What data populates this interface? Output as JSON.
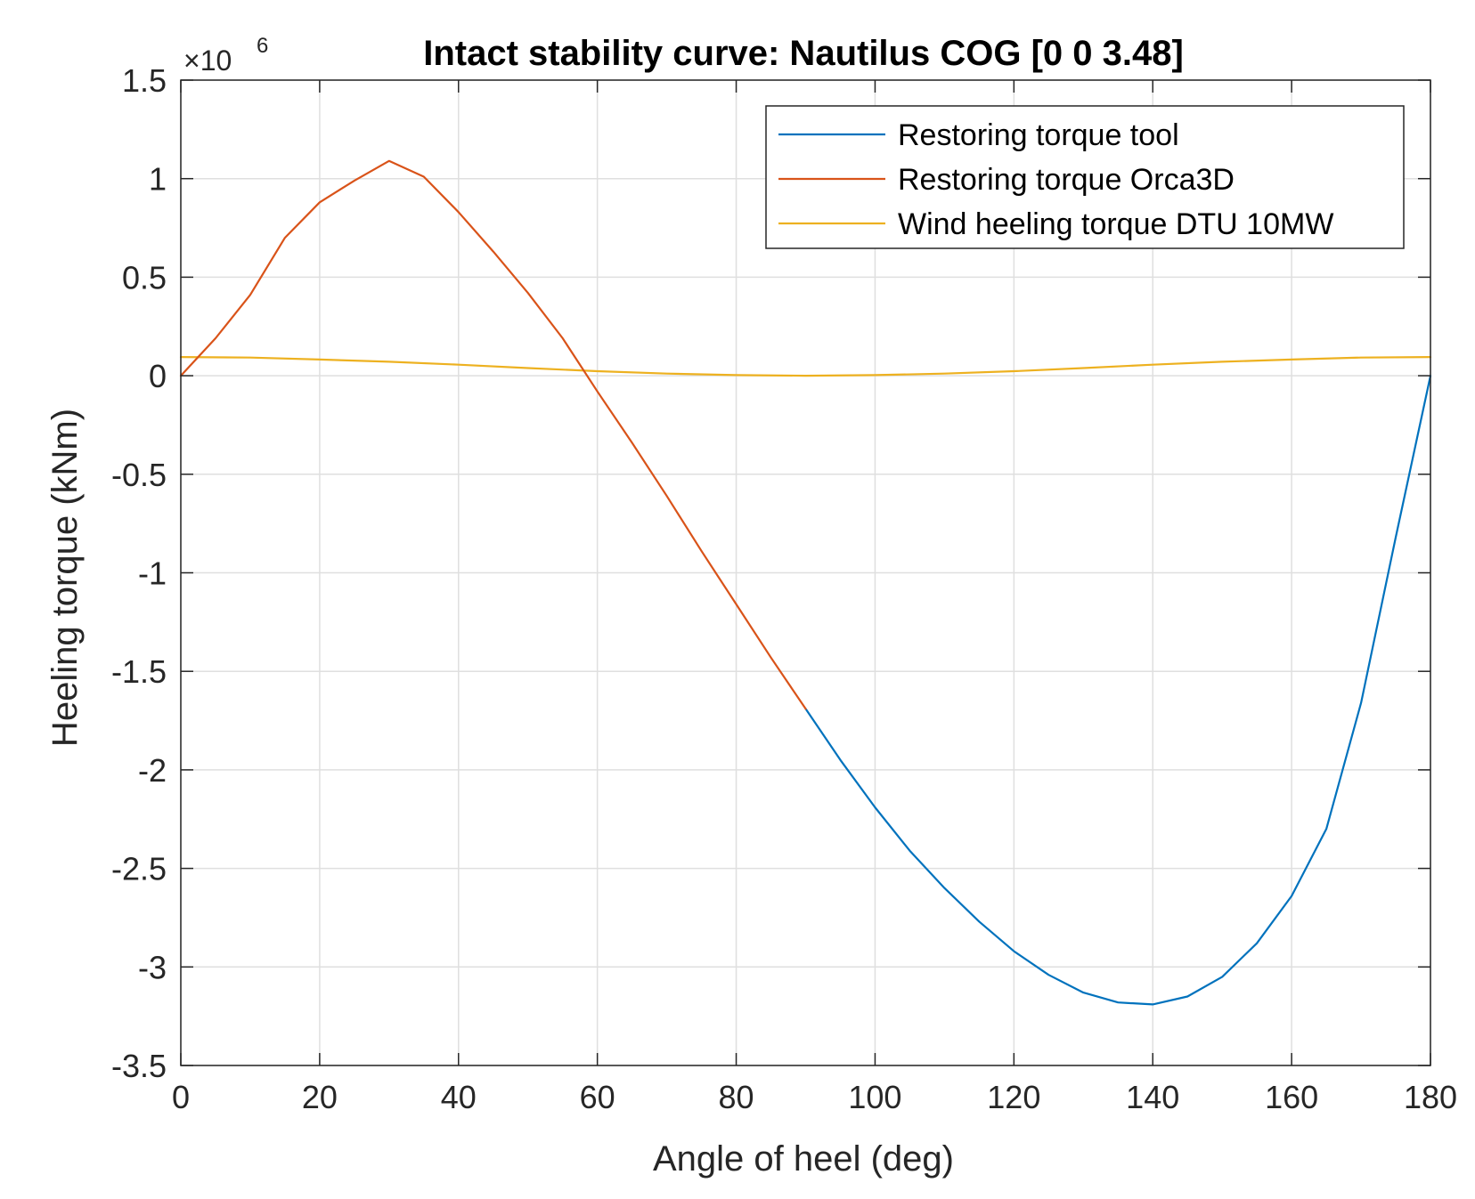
{
  "chart_data": {
    "type": "line",
    "title": "Intact stability curve: Nautilus COG [0 0 3.48]",
    "xlabel": "Angle of heel (deg)",
    "ylabel": "Heeling torque (kNm)",
    "y_exponent_label": "×10",
    "y_exponent_power": "6",
    "xlim": [
      0,
      180
    ],
    "ylim": [
      -3.5,
      1.5
    ],
    "x_ticks": [
      "0",
      "20",
      "40",
      "60",
      "80",
      "100",
      "120",
      "140",
      "160",
      "180"
    ],
    "y_ticks": [
      "-3.5",
      "-3",
      "-2.5",
      "-2",
      "-1.5",
      "-1",
      "-0.5",
      "0",
      "0.5",
      "1",
      "1.5"
    ],
    "grid": true,
    "legend_position": "top-right",
    "series": [
      {
        "name": "Restoring torque tool",
        "color": "#0072BD",
        "x": [
          90,
          95,
          100,
          105,
          110,
          115,
          120,
          125,
          130,
          135,
          140,
          145,
          150,
          155,
          160,
          165,
          170,
          175,
          180
        ],
        "y": [
          -1.69,
          -1.95,
          -2.19,
          -2.41,
          -2.6,
          -2.77,
          -2.92,
          -3.04,
          -3.13,
          -3.18,
          -3.19,
          -3.15,
          -3.05,
          -2.88,
          -2.64,
          -2.3,
          -1.66,
          -0.82,
          0.0
        ]
      },
      {
        "name": "Restoring torque Orca3D",
        "color": "#D95319",
        "x": [
          0,
          5,
          10,
          15,
          20,
          25,
          30,
          35,
          40,
          45,
          50,
          55,
          60,
          65,
          70,
          75,
          80,
          85,
          90
        ],
        "y": [
          0.0,
          0.19,
          0.41,
          0.7,
          0.88,
          0.99,
          1.09,
          1.01,
          0.83,
          0.63,
          0.42,
          0.19,
          -0.08,
          -0.34,
          -0.61,
          -0.89,
          -1.16,
          -1.43,
          -1.69
        ]
      },
      {
        "name": "Wind heeling torque DTU 10MW",
        "color": "#EDB120",
        "x": [
          0,
          10,
          20,
          30,
          40,
          50,
          60,
          70,
          80,
          90,
          100,
          110,
          120,
          130,
          140,
          150,
          160,
          170,
          180
        ],
        "y": [
          0.095,
          0.092,
          0.082,
          0.071,
          0.056,
          0.039,
          0.023,
          0.011,
          0.003,
          0.0,
          0.003,
          0.011,
          0.023,
          0.039,
          0.056,
          0.071,
          0.082,
          0.092,
          0.095
        ]
      }
    ]
  }
}
